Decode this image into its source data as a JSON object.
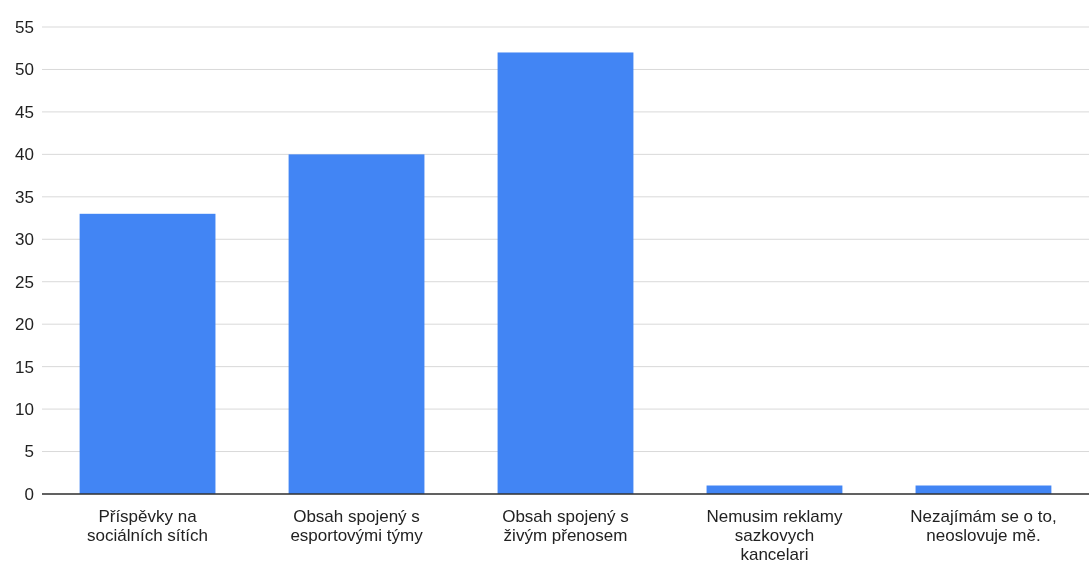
{
  "chart_data": {
    "type": "bar",
    "categories": [
      "Příspěvky na sociálních sítích",
      "Obsah spojený s esportovými týmy",
      "Obsah spojený s živým přenosem",
      "Nemusim reklamy sazkovych kancelari",
      "Nezajímám se o to, neoslovuje mě."
    ],
    "values": [
      33,
      40,
      52,
      1,
      1
    ],
    "color": "#4285f4",
    "ylim": [
      0,
      55
    ],
    "yticks": [
      0,
      5,
      10,
      15,
      20,
      25,
      30,
      35,
      40,
      45,
      50,
      55
    ],
    "grid": "y"
  }
}
